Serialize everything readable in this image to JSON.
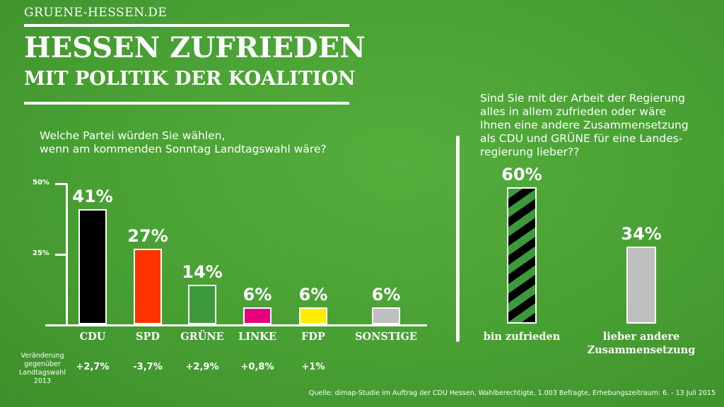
{
  "site": "GRUENE-HESSEN.DE",
  "title": {
    "line1": "HESSEN ZUFRIEDEN",
    "line2": "MIT POLITIK DER KOALITION"
  },
  "chart_data": [
    {
      "type": "bar",
      "question": [
        "Welche Partei würden Sie wählen,",
        "wenn am kommenden Sonntag Landtagswahl wäre?"
      ],
      "categories": [
        "CDU",
        "SPD",
        "GRÜNE",
        "LINKE",
        "FDP",
        "SONSTIGE"
      ],
      "values": [
        41,
        27,
        14,
        6,
        6,
        6
      ],
      "value_labels": [
        "41%",
        "27%",
        "14%",
        "6%",
        "6%",
        "6%"
      ],
      "colors": [
        "#000000",
        "#ff3300",
        "#3c9a3c",
        "#e5007d",
        "#ffed00",
        "#bfbfbf"
      ],
      "ylim": [
        0,
        50
      ],
      "yticks": [
        {
          "value": 50,
          "label": "50%"
        },
        {
          "value": 25,
          "label": "25%"
        }
      ],
      "change_label": [
        "Veränderung",
        "gegenüber",
        "Landtagswahl",
        "2013"
      ],
      "changes": [
        "+2,7%",
        "-3,7%",
        "+2,9%",
        "+0,8%",
        "+1%",
        ""
      ]
    },
    {
      "type": "bar",
      "question": [
        "Sind Sie mit der Arbeit der Regierung",
        "alles in allem zufrieden oder wäre",
        "Ihnen eine andere Zusammensetzung",
        "als CDU und GRÜNE für eine Landes-",
        "regierung lieber??"
      ],
      "categories": [
        [
          "bin zufrieden"
        ],
        [
          "lieber andere",
          "Zusammensetzung"
        ]
      ],
      "values": [
        60,
        34
      ],
      "value_labels": [
        "60%",
        "34%"
      ],
      "colors": [
        "striped-black-green",
        "#bfbfbf"
      ],
      "ylim": [
        0,
        60
      ]
    }
  ],
  "source": "Quelle: dimap-Studie im Auftrag der CDU Hessen, Wahlberechtigte, 1.003 Befragte, Erhebungszeitraum: 6. - 13 Juli 2015"
}
